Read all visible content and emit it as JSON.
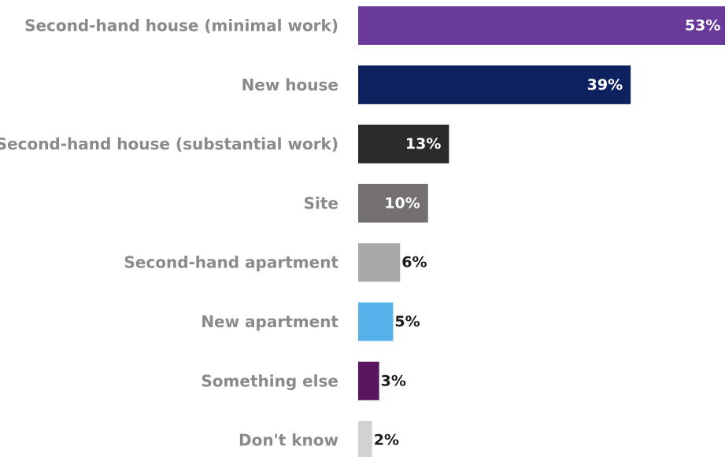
{
  "chart_data": {
    "type": "bar",
    "orientation": "horizontal",
    "categories": [
      "Second-hand house (minimal work)",
      "New house",
      "Second-hand house (substantial work)",
      "Site",
      "Second-hand apartment",
      "New apartment",
      "Something else",
      "Don't know"
    ],
    "values": [
      53,
      39,
      13,
      10,
      6,
      5,
      3,
      2
    ],
    "value_labels": [
      "53%",
      "39%",
      "13%",
      "10%",
      "6%",
      "5%",
      "3%",
      "2%"
    ],
    "colors": [
      "#6a3a9a",
      "#0e2260",
      "#2b2b2b",
      "#747070",
      "#a9a9a9",
      "#56b0ea",
      "#5a1560",
      "#d2d2d2"
    ],
    "label_colors": [
      "#ffffff",
      "#ffffff",
      "#ffffff",
      "#ffffff",
      "#1a1a1a",
      "#1a1a1a",
      "#1a1a1a",
      "#1a1a1a"
    ],
    "title": "",
    "xlabel": "",
    "ylabel": "",
    "xlim": [
      0,
      52.5
    ],
    "grid": false,
    "legend": "none"
  }
}
